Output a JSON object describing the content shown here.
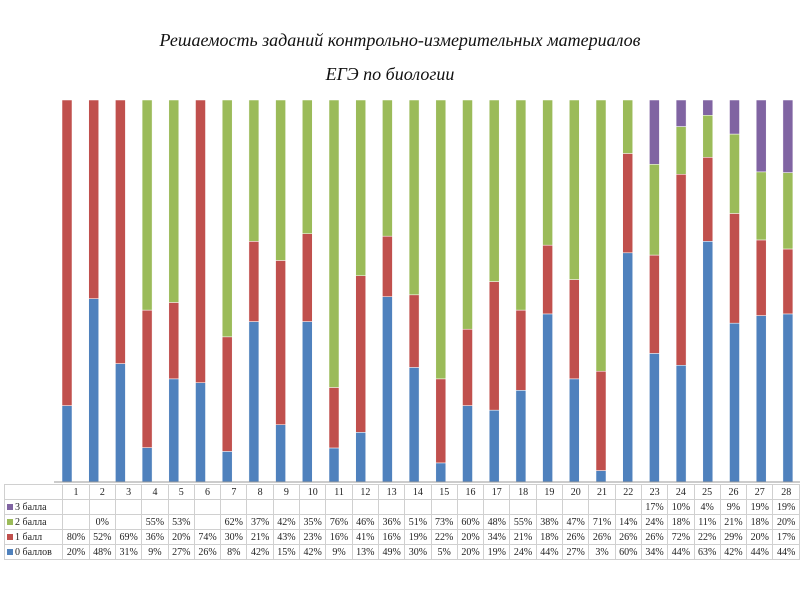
{
  "chart_data": {
    "type": "bar",
    "stacked": "100%",
    "title": "Решаемость заданий контрольно-измерительных материалов",
    "subtitle": "ЕГЭ по биологии",
    "categories": [
      "1",
      "2",
      "3",
      "4",
      "5",
      "6",
      "7",
      "8",
      "9",
      "10",
      "11",
      "12",
      "13",
      "14",
      "15",
      "16",
      "17",
      "18",
      "19",
      "20",
      "21",
      "22",
      "23",
      "24",
      "25",
      "26",
      "27",
      "28"
    ],
    "series": [
      {
        "name": "0 баллов",
        "color": "#4f81bd",
        "values": [
          20,
          48,
          31,
          9,
          27,
          26,
          8,
          42,
          15,
          42,
          9,
          13,
          49,
          30,
          5,
          20,
          19,
          24,
          44,
          27,
          3,
          60,
          34,
          44,
          63,
          42,
          44,
          44
        ]
      },
      {
        "name": "1 балл",
        "color": "#c0504d",
        "values": [
          80,
          52,
          69,
          36,
          20,
          74,
          30,
          21,
          43,
          23,
          16,
          41,
          16,
          19,
          22,
          20,
          34,
          21,
          18,
          26,
          26,
          26,
          26,
          72,
          22,
          29,
          20,
          17
        ]
      },
      {
        "name": "2 балла",
        "color": "#9bbb59",
        "values": [
          null,
          0,
          null,
          55,
          53,
          null,
          62,
          37,
          42,
          35,
          76,
          46,
          36,
          51,
          73,
          60,
          48,
          55,
          38,
          47,
          71,
          14,
          24,
          18,
          11,
          21,
          18,
          20
        ]
      },
      {
        "name": "3 балла",
        "color": "#8064a2",
        "values": [
          null,
          null,
          null,
          null,
          null,
          null,
          null,
          null,
          null,
          null,
          null,
          null,
          null,
          null,
          null,
          null,
          null,
          null,
          null,
          null,
          null,
          null,
          17,
          10,
          4,
          9,
          19,
          19
        ]
      }
    ],
    "legend": "table-bottom",
    "grid": false,
    "value_format": "%"
  }
}
